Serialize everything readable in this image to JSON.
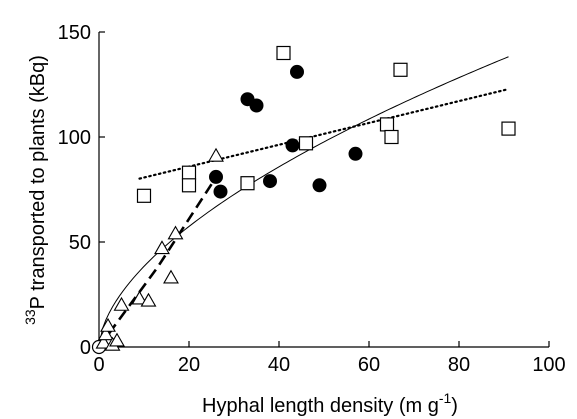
{
  "chart_data": {
    "type": "scatter",
    "xlabel": "Hyphal length density (m g",
    "xlabel_sup": "-1",
    "xlabel_end": ")",
    "ylabel_sup": "33",
    "ylabel": "P transported to plants (kBq)",
    "xlim": [
      0,
      100
    ],
    "ylim": [
      0,
      150
    ],
    "x_ticks": [
      "0",
      "20",
      "40",
      "60",
      "80",
      "100"
    ],
    "y_ticks": [
      "0",
      "50",
      "100",
      "150"
    ],
    "grid": false,
    "series": [
      {
        "marker": "circle-open",
        "points": [
          [
            0,
            0
          ]
        ]
      },
      {
        "marker": "triangle-open",
        "points": [
          [
            1,
            2
          ],
          [
            1.5,
            6
          ],
          [
            2,
            10
          ],
          [
            3,
            1
          ],
          [
            4,
            3
          ],
          [
            5,
            20
          ],
          [
            9,
            23
          ],
          [
            11,
            22
          ],
          [
            14,
            47
          ],
          [
            16,
            33
          ],
          [
            17,
            54
          ],
          [
            26,
            91
          ]
        ]
      },
      {
        "marker": "circle-filled",
        "points": [
          [
            26,
            81
          ],
          [
            27,
            74
          ],
          [
            33,
            118
          ],
          [
            35,
            115
          ],
          [
            38,
            79
          ],
          [
            43,
            96
          ],
          [
            44,
            131
          ],
          [
            49,
            77
          ],
          [
            57,
            92
          ]
        ]
      },
      {
        "marker": "square-open",
        "points": [
          [
            10,
            72
          ],
          [
            20,
            83
          ],
          [
            20,
            77
          ],
          [
            33,
            78
          ],
          [
            41,
            140
          ],
          [
            46,
            97
          ],
          [
            64,
            106
          ],
          [
            65,
            100
          ],
          [
            67,
            132
          ],
          [
            91,
            104
          ]
        ]
      }
    ],
    "fits": [
      {
        "style": "thin-solid",
        "x_range": [
          0,
          91
        ],
        "model": "power",
        "a": 10.1,
        "b": 0.58
      },
      {
        "style": "dotted",
        "x_range": [
          9,
          91
        ],
        "model": "linear",
        "slope": 0.52,
        "intercept": 75.5
      },
      {
        "style": "dashed",
        "x_range": [
          0,
          26
        ],
        "model": "linear",
        "slope": 3.3,
        "intercept": -5
      }
    ]
  }
}
